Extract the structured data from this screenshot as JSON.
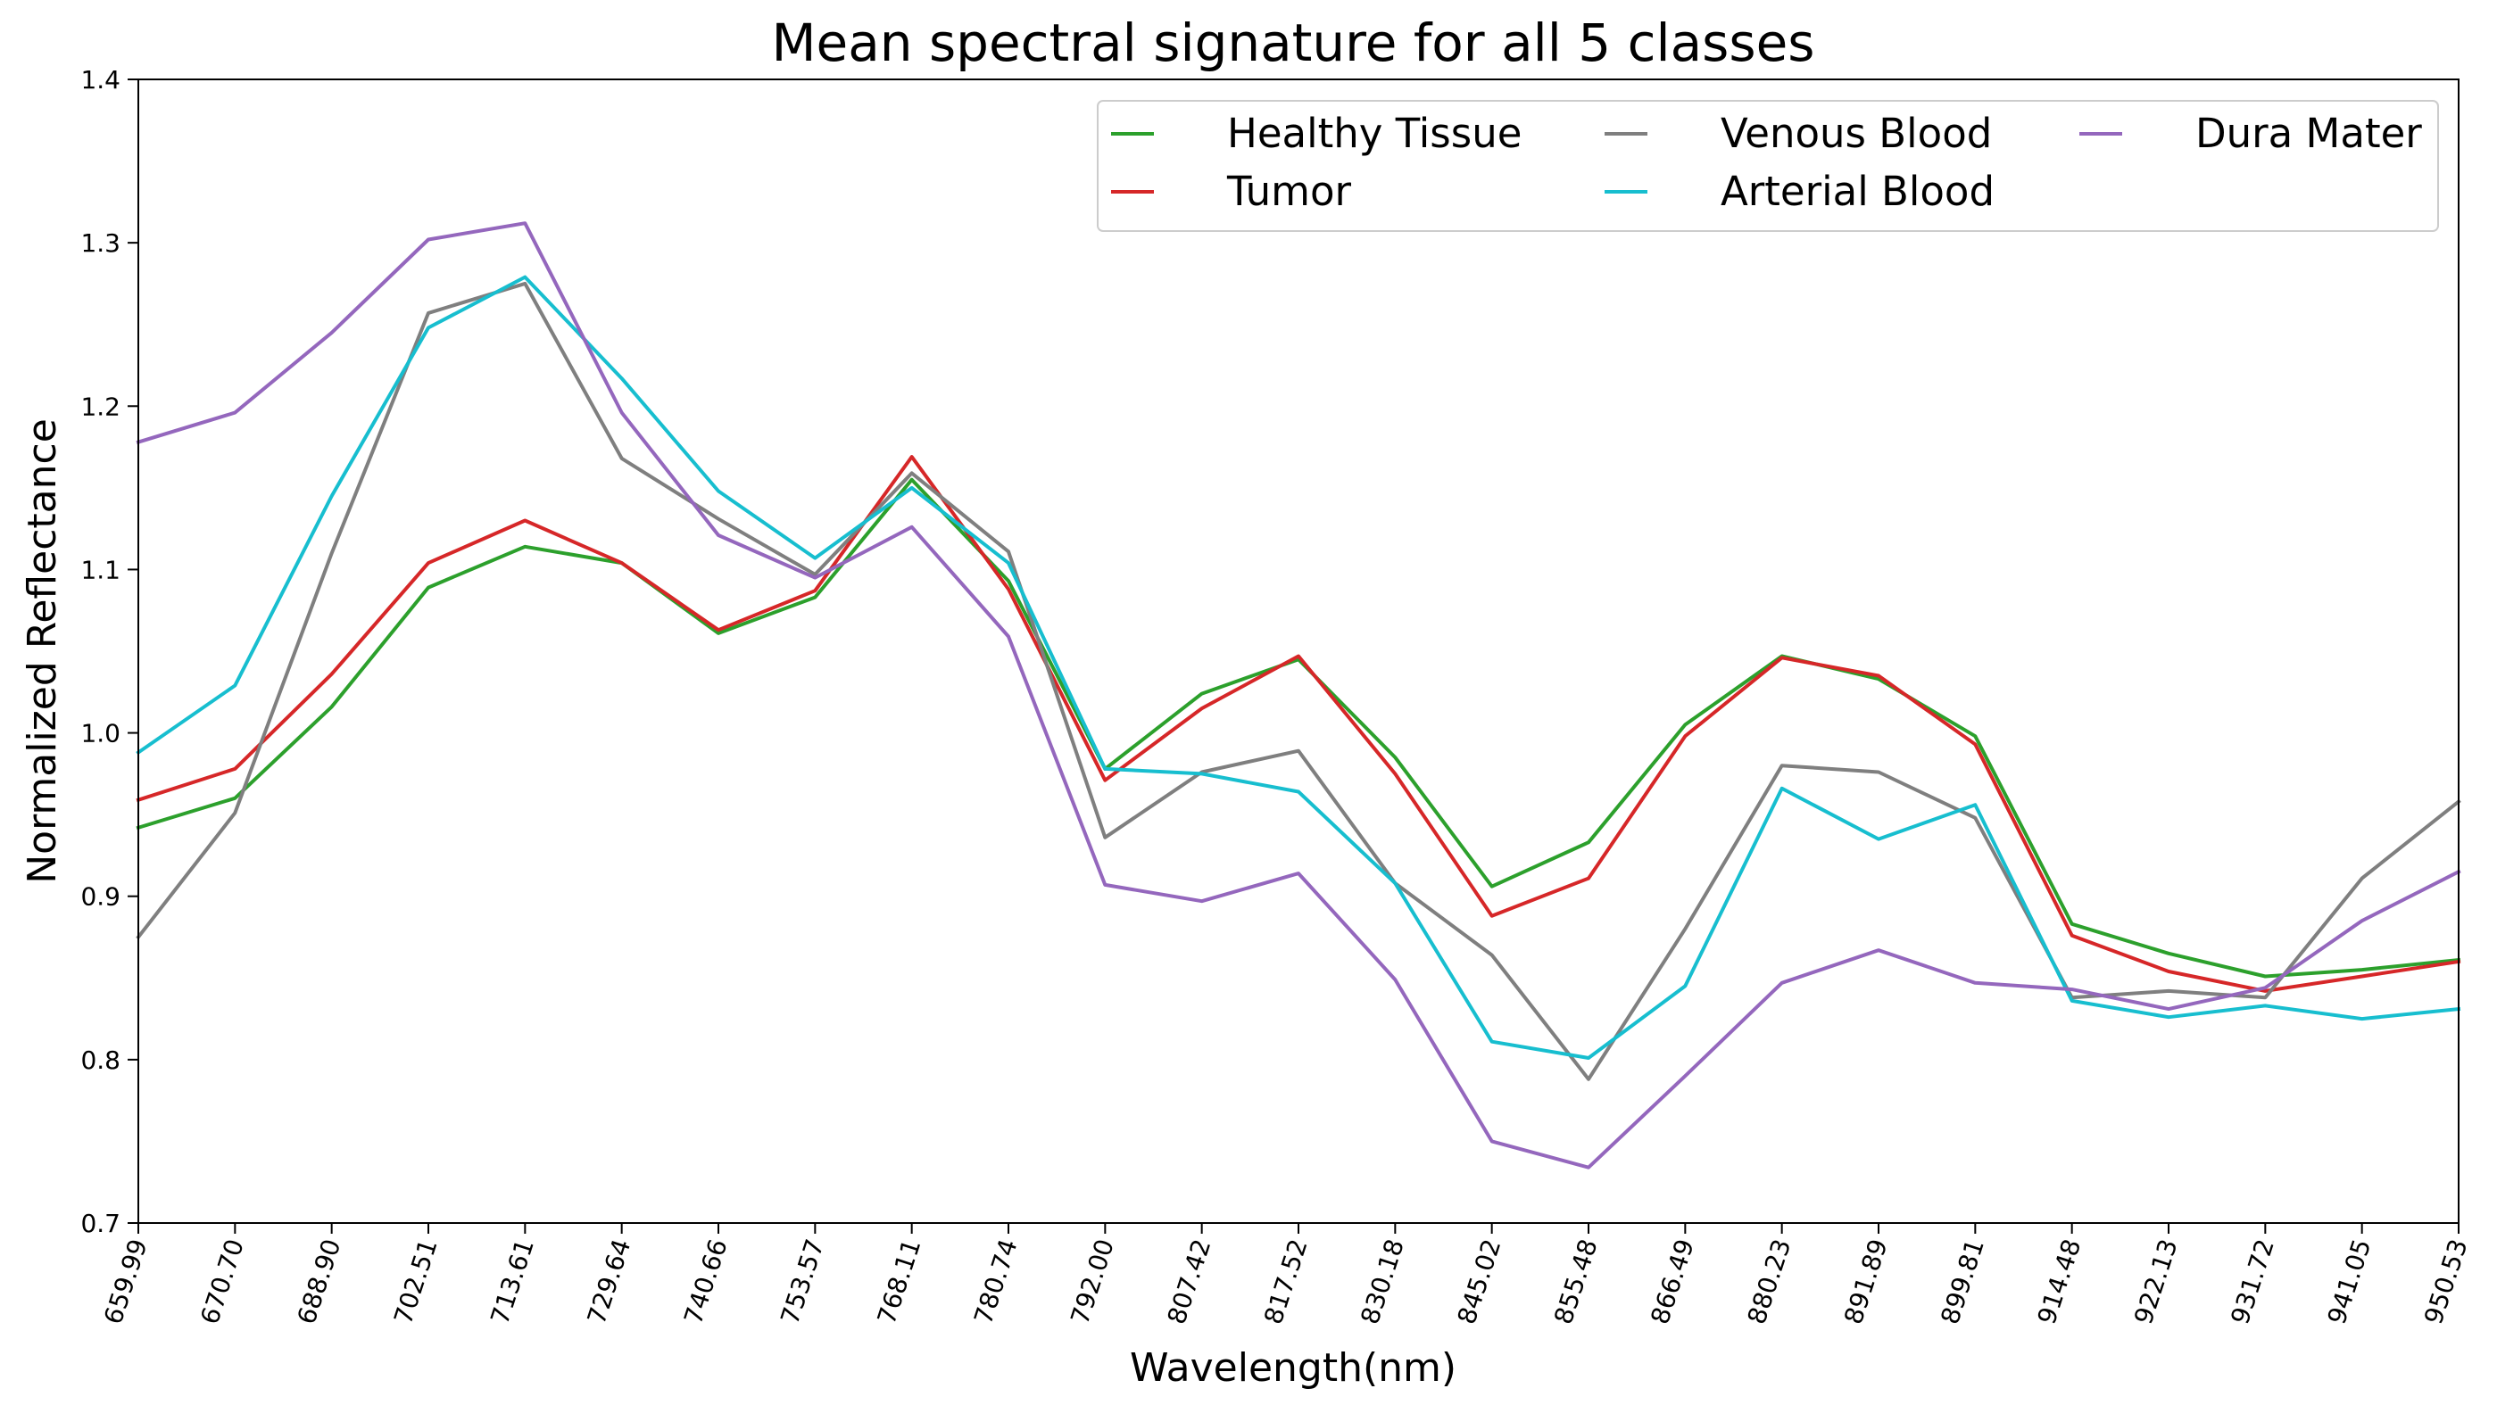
{
  "chart_data": {
    "type": "line",
    "title": "Mean spectral signature for all 5 classes",
    "xlabel": "Wavelength(nm)",
    "ylabel": "Normalized Reflectance",
    "ylim": [
      0.7,
      1.4
    ],
    "yticks": [
      "0.7",
      "0.8",
      "0.9",
      "1.0",
      "1.1",
      "1.2",
      "1.3",
      "1.4"
    ],
    "x": [
      "659.99",
      "670.70",
      "688.90",
      "702.51",
      "713.61",
      "729.64",
      "740.66",
      "753.57",
      "768.11",
      "780.74",
      "792.00",
      "807.42",
      "817.52",
      "830.18",
      "845.02",
      "855.48",
      "866.49",
      "880.23",
      "891.89",
      "899.81",
      "914.48",
      "922.13",
      "931.72",
      "941.05",
      "950.53"
    ],
    "grid": false,
    "legend_position": "top-right",
    "series": [
      {
        "name": "Healthy Tissue",
        "color": "#2ca02c",
        "values": [
          0.942,
          0.96,
          1.016,
          1.089,
          1.114,
          1.104,
          1.061,
          1.083,
          1.155,
          1.093,
          0.978,
          1.024,
          1.045,
          0.985,
          0.906,
          0.933,
          1.005,
          1.047,
          1.033,
          0.998,
          0.883,
          0.865,
          0.851,
          0.855,
          0.861
        ]
      },
      {
        "name": "Tumor",
        "color": "#d62728",
        "values": [
          0.959,
          0.978,
          1.036,
          1.104,
          1.13,
          1.104,
          1.063,
          1.087,
          1.169,
          1.088,
          0.971,
          1.015,
          1.047,
          0.975,
          0.888,
          0.911,
          0.998,
          1.046,
          1.035,
          0.993,
          0.876,
          0.854,
          0.842,
          0.851,
          0.86
        ]
      },
      {
        "name": "Venous Blood",
        "color": "#7f7f7f",
        "values": [
          0.875,
          0.951,
          1.11,
          1.257,
          1.275,
          1.168,
          1.131,
          1.097,
          1.159,
          1.111,
          0.936,
          0.976,
          0.989,
          0.908,
          0.864,
          0.788,
          0.88,
          0.98,
          0.976,
          0.948,
          0.838,
          0.842,
          0.838,
          0.911,
          0.958
        ]
      },
      {
        "name": "Arterial Blood",
        "color": "#17becf",
        "values": [
          0.988,
          1.029,
          1.145,
          1.248,
          1.279,
          1.217,
          1.148,
          1.107,
          1.15,
          1.104,
          0.978,
          0.975,
          0.964,
          0.908,
          0.811,
          0.801,
          0.845,
          0.966,
          0.935,
          0.956,
          0.836,
          0.826,
          0.833,
          0.825,
          0.831
        ]
      },
      {
        "name": "Dura Mater",
        "color": "#9467bd",
        "values": [
          1.178,
          1.196,
          1.245,
          1.302,
          1.312,
          1.196,
          1.121,
          1.095,
          1.126,
          1.059,
          0.907,
          0.897,
          0.914,
          0.849,
          0.75,
          0.734,
          0.79,
          0.847,
          0.867,
          0.847,
          0.843,
          0.831,
          0.844,
          0.885,
          0.915
        ]
      }
    ]
  }
}
